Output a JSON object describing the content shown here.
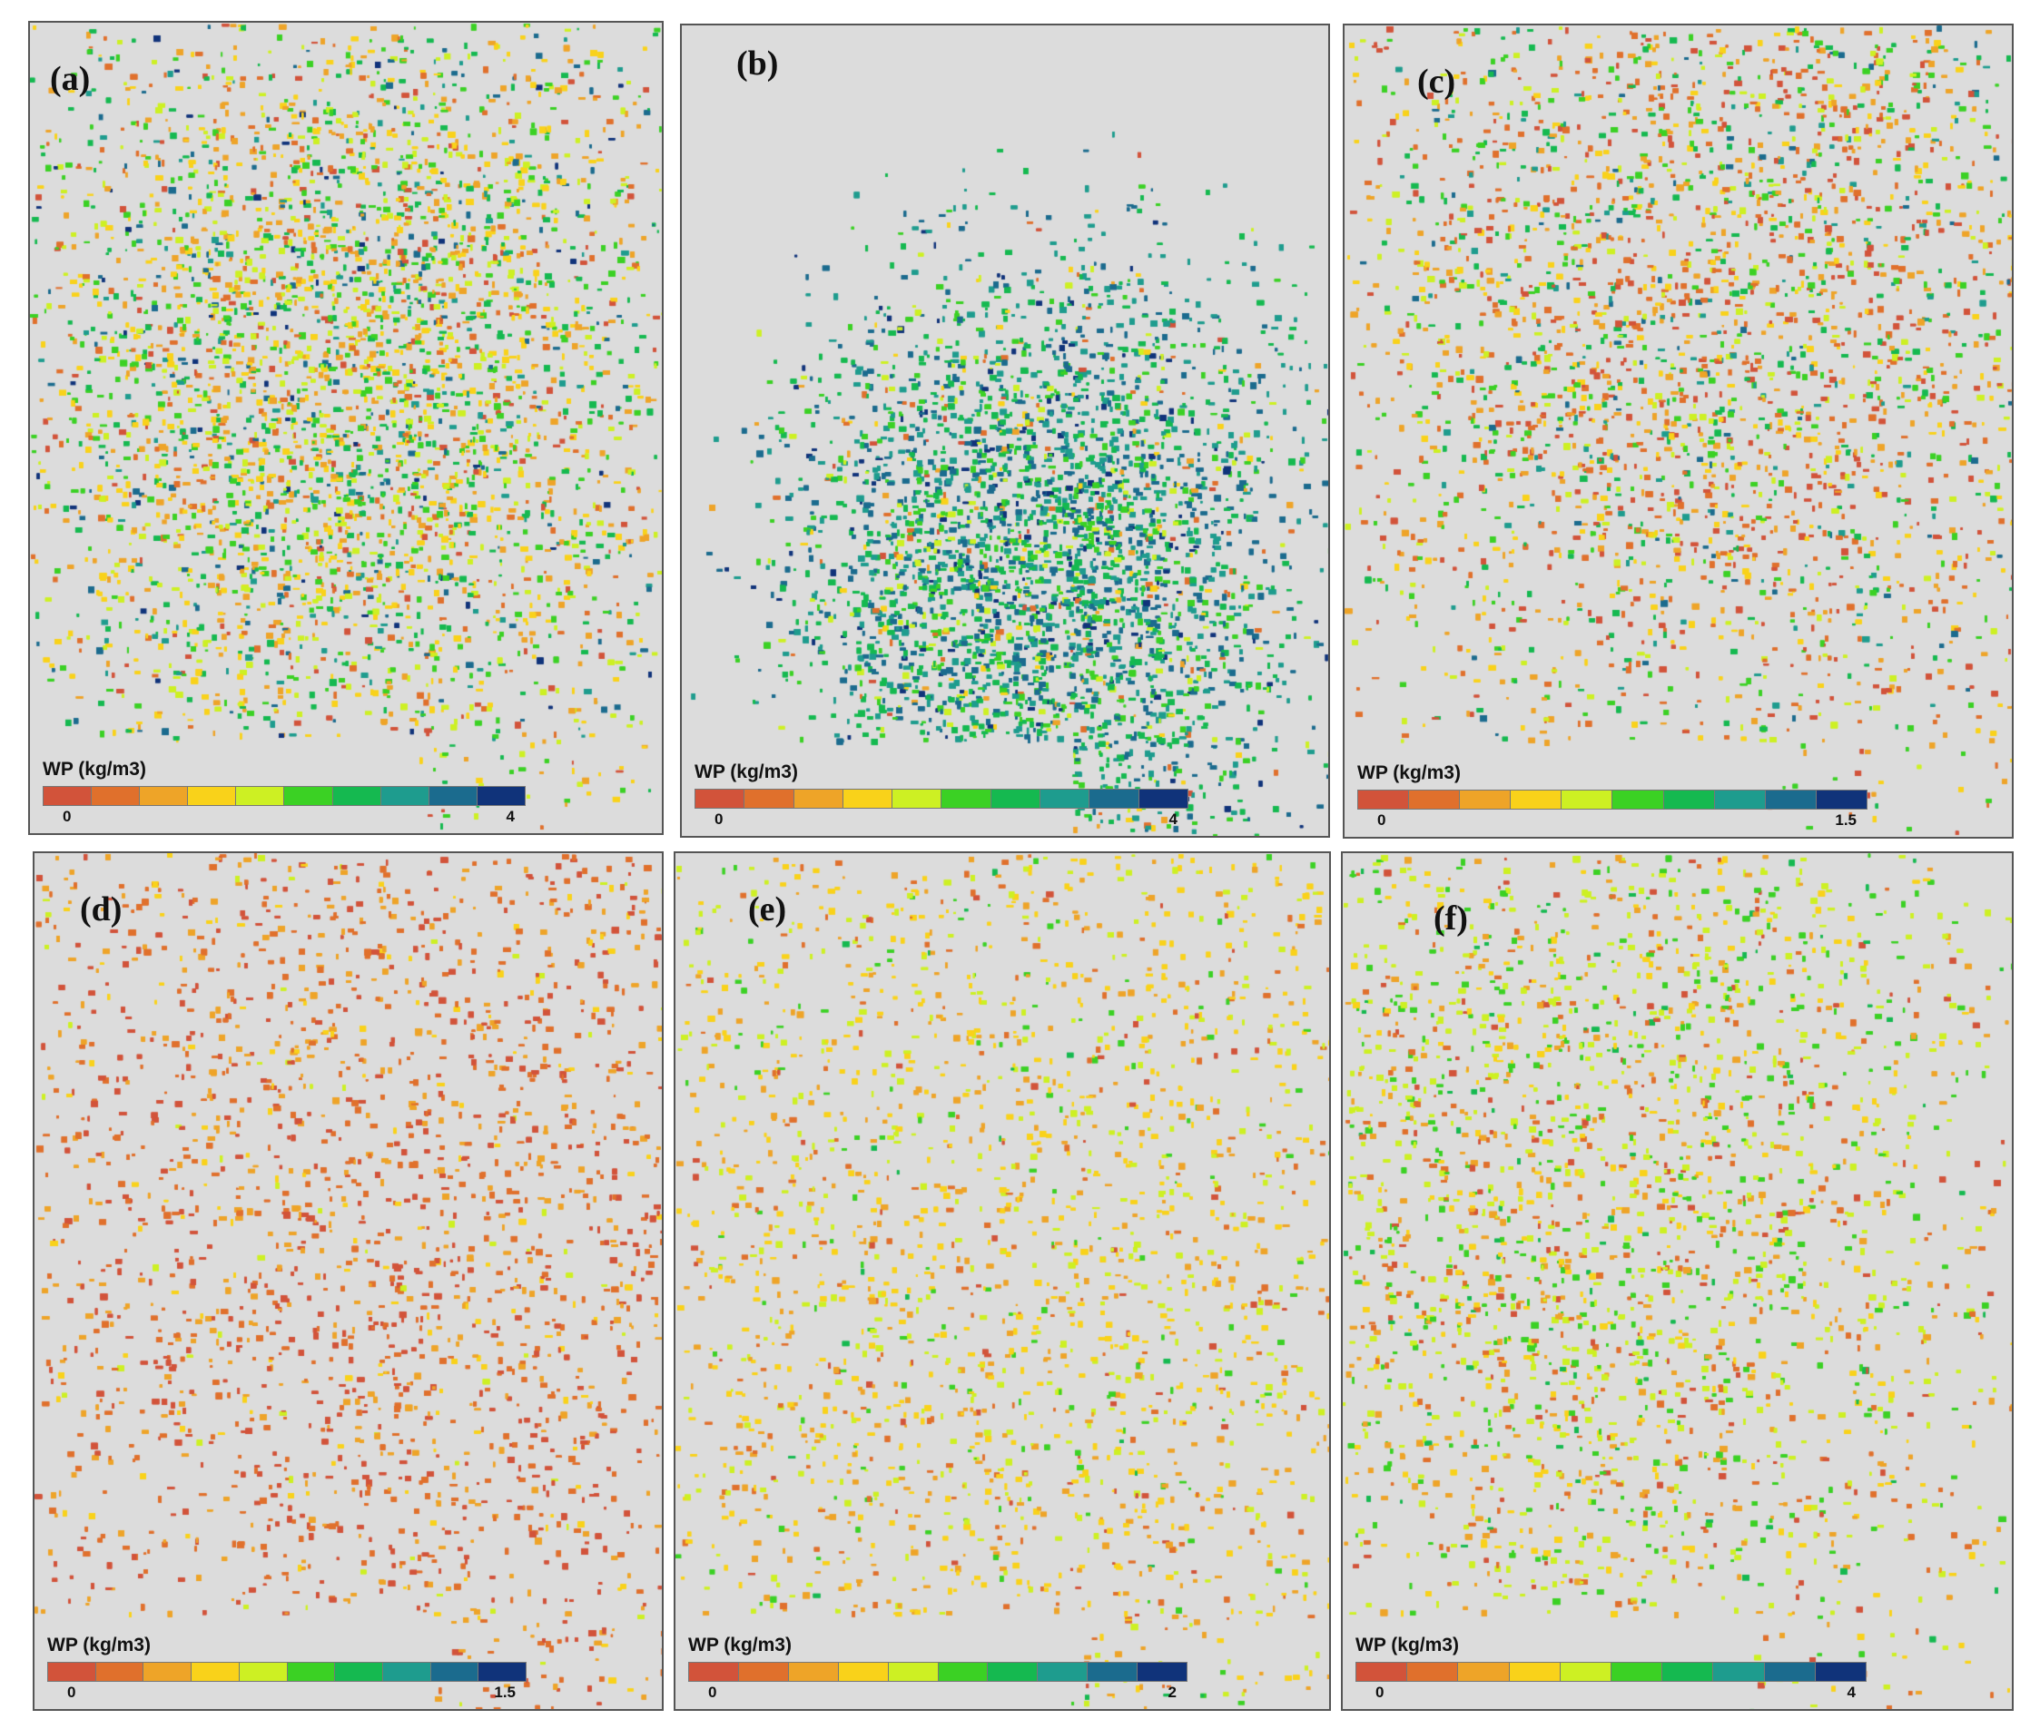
{
  "colormap": [
    "#d2533a",
    "#e0702c",
    "#eea428",
    "#f9d21a",
    "#cdf023",
    "#3bd124",
    "#15b950",
    "#1e9c8e",
    "#1b6b8e",
    "#10337a"
  ],
  "background_color": "#dcdcdc",
  "panels": [
    {
      "label": "(a)",
      "legend_title": "WP (kg/m3)",
      "min": "0",
      "max": "4"
    },
    {
      "label": "(b)",
      "legend_title": "WP (kg/m3)",
      "min": "0",
      "max": "4"
    },
    {
      "label": "(c)",
      "legend_title": "WP (kg/m3)",
      "min": "0",
      "max": "1.5"
    },
    {
      "label": "(d)",
      "legend_title": "WP (kg/m3)",
      "min": "0",
      "max": "1.5"
    },
    {
      "label": "(e)",
      "legend_title": "WP (kg/m3)",
      "min": "0",
      "max": "2"
    },
    {
      "label": "(f)",
      "legend_title": "WP (kg/m3)",
      "min": "0",
      "max": "4"
    }
  ]
}
